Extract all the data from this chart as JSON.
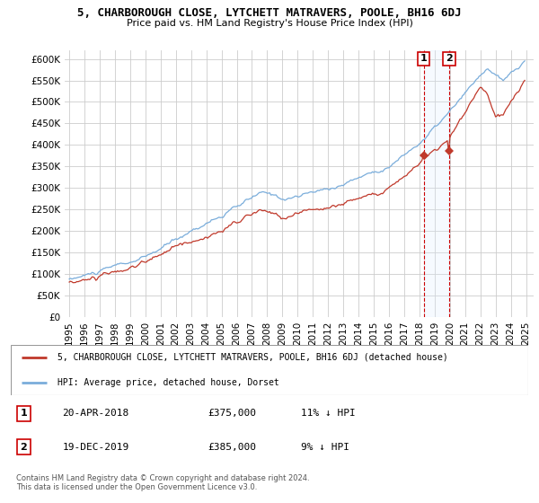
{
  "title": "5, CHARBOROUGH CLOSE, LYTCHETT MATRAVERS, POOLE, BH16 6DJ",
  "subtitle": "Price paid vs. HM Land Registry's House Price Index (HPI)",
  "hpi_label": "HPI: Average price, detached house, Dorset",
  "property_label": "5, CHARBOROUGH CLOSE, LYTCHETT MATRAVERS, POOLE, BH16 6DJ (detached house)",
  "footnote": "Contains HM Land Registry data © Crown copyright and database right 2024.\nThis data is licensed under the Open Government Licence v3.0.",
  "transactions": [
    {
      "id": 1,
      "date": "20-APR-2018",
      "price": 375000,
      "hpi_diff": "11% ↓ HPI",
      "x_year": 2018.29
    },
    {
      "id": 2,
      "date": "19-DEC-2019",
      "price": 385000,
      "hpi_diff": "9% ↓ HPI",
      "x_year": 2019.96
    }
  ],
  "hpi_color": "#7aaddb",
  "property_color": "#c0392b",
  "marker_box_color": "#cc0000",
  "annotation_line_color": "#cc0000",
  "shaded_color": "#ddeeff",
  "background_color": "#ffffff",
  "grid_color": "#cccccc",
  "ylim": [
    0,
    620000
  ],
  "yticks": [
    0,
    50000,
    100000,
    150000,
    200000,
    250000,
    300000,
    350000,
    400000,
    450000,
    500000,
    550000,
    600000
  ],
  "xlim_start": 1994.7,
  "xlim_end": 2025.5,
  "xticks": [
    1995,
    1996,
    1997,
    1998,
    1999,
    2000,
    2001,
    2002,
    2003,
    2004,
    2005,
    2006,
    2007,
    2008,
    2009,
    2010,
    2011,
    2012,
    2013,
    2014,
    2015,
    2016,
    2017,
    2018,
    2019,
    2020,
    2021,
    2022,
    2023,
    2024,
    2025
  ]
}
